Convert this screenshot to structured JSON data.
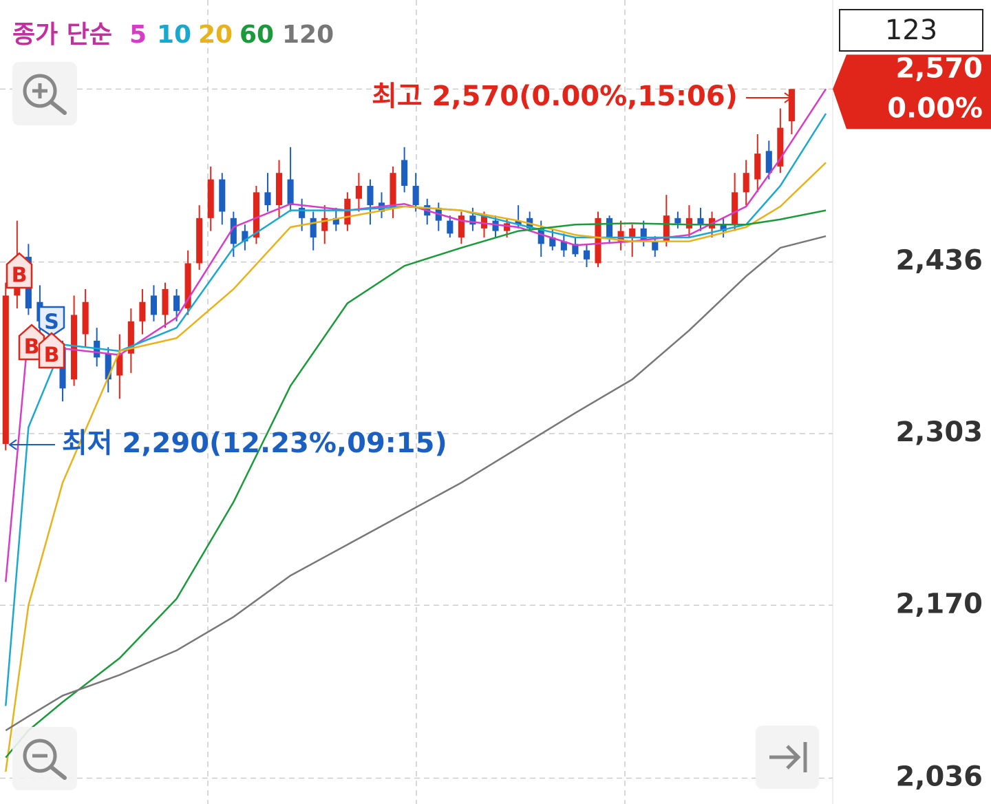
{
  "chart_data": {
    "type": "candlestick",
    "legend_title": "종가 단순",
    "period_label": "123",
    "x": [
      0,
      1,
      2,
      3,
      4,
      5,
      6,
      7,
      8,
      9,
      10,
      11,
      12,
      13,
      14,
      15,
      16,
      17,
      18,
      19,
      20,
      21,
      22,
      23,
      24,
      25,
      26,
      27,
      28,
      29,
      30,
      31,
      32,
      33,
      34,
      35,
      36,
      37,
      38,
      39,
      40,
      41,
      42,
      43,
      44,
      45,
      46,
      47,
      48,
      49,
      50,
      51,
      52,
      53,
      54,
      55,
      56,
      57,
      58,
      59,
      60,
      61,
      62,
      63,
      64,
      65,
      66,
      67,
      68,
      69
    ],
    "open": [
      2295,
      2410,
      2440,
      2405,
      2395,
      2370,
      2345,
      2380,
      2375,
      2365,
      2348,
      2365,
      2390,
      2410,
      2395,
      2410,
      2400,
      2435,
      2470,
      2500,
      2470,
      2460,
      2455,
      2490,
      2480,
      2500,
      2478,
      2470,
      2460,
      2470,
      2465,
      2485,
      2495,
      2482,
      2478,
      2515,
      2495,
      2480,
      2478,
      2468,
      2455,
      2472,
      2462,
      2468,
      2460,
      2468,
      2470,
      2462,
      2455,
      2452,
      2450,
      2445,
      2435,
      2470,
      2452,
      2455,
      2462,
      2452,
      2452,
      2470,
      2462,
      2470,
      2462,
      2465,
      2465,
      2490,
      2500,
      2522,
      2510,
      2545
    ],
    "high": [
      2420,
      2468,
      2450,
      2418,
      2400,
      2375,
      2410,
      2415,
      2385,
      2370,
      2380,
      2400,
      2415,
      2418,
      2420,
      2415,
      2445,
      2480,
      2510,
      2505,
      2475,
      2465,
      2495,
      2505,
      2515,
      2525,
      2485,
      2475,
      2480,
      2478,
      2490,
      2505,
      2500,
      2490,
      2510,
      2525,
      2505,
      2485,
      2482,
      2472,
      2475,
      2478,
      2475,
      2472,
      2470,
      2480,
      2475,
      2468,
      2462,
      2458,
      2455,
      2450,
      2475,
      2472,
      2468,
      2465,
      2468,
      2456,
      2488,
      2475,
      2480,
      2478,
      2475,
      2470,
      2505,
      2515,
      2535,
      2530,
      2555,
      2570
    ],
    "low": [
      2290,
      2400,
      2395,
      2380,
      2355,
      2328,
      2340,
      2370,
      2355,
      2335,
      2330,
      2350,
      2380,
      2390,
      2385,
      2390,
      2395,
      2430,
      2460,
      2465,
      2440,
      2445,
      2450,
      2475,
      2470,
      2475,
      2460,
      2445,
      2450,
      2460,
      2460,
      2475,
      2465,
      2470,
      2470,
      2490,
      2475,
      2465,
      2460,
      2455,
      2450,
      2460,
      2455,
      2455,
      2455,
      2462,
      2460,
      2440,
      2445,
      2440,
      2440,
      2432,
      2432,
      2450,
      2445,
      2440,
      2448,
      2440,
      2448,
      2462,
      2455,
      2460,
      2455,
      2455,
      2460,
      2480,
      2490,
      2500,
      2505,
      2535
    ],
    "close": [
      2410,
      2440,
      2400,
      2390,
      2365,
      2338,
      2395,
      2405,
      2362,
      2345,
      2365,
      2390,
      2405,
      2395,
      2415,
      2398,
      2435,
      2470,
      2500,
      2475,
      2450,
      2452,
      2490,
      2480,
      2505,
      2480,
      2470,
      2455,
      2470,
      2465,
      2485,
      2495,
      2480,
      2475,
      2505,
      2495,
      2480,
      2472,
      2468,
      2458,
      2472,
      2465,
      2472,
      2460,
      2466,
      2465,
      2462,
      2450,
      2448,
      2445,
      2442,
      2438,
      2470,
      2455,
      2460,
      2462,
      2452,
      2445,
      2472,
      2466,
      2470,
      2465,
      2470,
      2460,
      2490,
      2505,
      2520,
      2505,
      2540,
      2570
    ],
    "up_color": "#e0261a",
    "down_color": "#1b5fc1",
    "series": [
      {
        "name": "5",
        "color": "#d63cc6",
        "x": [
          0,
          2,
          5,
          10,
          15,
          20,
          25,
          30,
          35,
          40,
          45,
          50,
          55,
          60,
          65,
          68,
          72
        ],
        "values": [
          2188,
          2383,
          2369,
          2364,
          2393,
          2463,
          2481,
          2476,
          2481,
          2468,
          2463,
          2449,
          2452,
          2457,
          2479,
          2516,
          2570
        ]
      },
      {
        "name": "10",
        "color": "#1aa8d0",
        "x": [
          0,
          2,
          5,
          10,
          15,
          20,
          25,
          30,
          35,
          40,
          45,
          50,
          55,
          60,
          65,
          68,
          72
        ],
        "values": [
          2092,
          2308,
          2372,
          2367,
          2385,
          2447,
          2476,
          2476,
          2479,
          2476,
          2465,
          2455,
          2455,
          2455,
          2465,
          2495,
          2551
        ]
      },
      {
        "name": "20",
        "color": "#e8b21a",
        "x": [
          0,
          2,
          5,
          10,
          15,
          20,
          25,
          30,
          35,
          40,
          45,
          50,
          55,
          60,
          65,
          68,
          72
        ],
        "values": [
          2041,
          2170,
          2265,
          2367,
          2377,
          2415,
          2463,
          2471,
          2479,
          2476,
          2468,
          2457,
          2452,
          2452,
          2463,
          2479,
          2513
        ]
      },
      {
        "name": "60",
        "color": "#1a9a3a",
        "x": [
          0,
          2,
          5,
          10,
          15,
          20,
          25,
          30,
          35,
          40,
          45,
          50,
          55,
          60,
          65,
          68,
          72
        ],
        "values": [
          2052,
          2073,
          2095,
          2129,
          2175,
          2250,
          2340,
          2404,
          2433,
          2447,
          2460,
          2465,
          2466,
          2465,
          2465,
          2469,
          2476
        ]
      },
      {
        "name": "120",
        "color": "#777777",
        "x": [
          0,
          2,
          5,
          10,
          15,
          20,
          25,
          30,
          35,
          40,
          45,
          50,
          55,
          60,
          65,
          68,
          72
        ],
        "values": [
          2073,
          2084,
          2100,
          2116,
          2135,
          2161,
          2193,
          2217,
          2241,
          2265,
          2292,
          2319,
          2345,
          2383,
          2425,
          2447,
          2456
        ]
      }
    ],
    "xlim": [
      -0.5,
      72.6
    ],
    "ylim": [
      2016,
      2639
    ],
    "yticks": [
      {
        "value": 2036,
        "label": "2,036"
      },
      {
        "value": 2170,
        "label": "2,170"
      },
      {
        "value": 2303,
        "label": "2,303"
      },
      {
        "value": 2436,
        "label": "2,436"
      }
    ],
    "grid": true,
    "current_price": {
      "value": 2570,
      "label": "2,570",
      "change": "0.00%"
    },
    "high_annotation": "최고 2,570(0.00%,15:06)",
    "low_annotation": "최저 2,290(12.23%,09:15)",
    "signals": [
      "B",
      "S",
      "B",
      "B"
    ]
  }
}
